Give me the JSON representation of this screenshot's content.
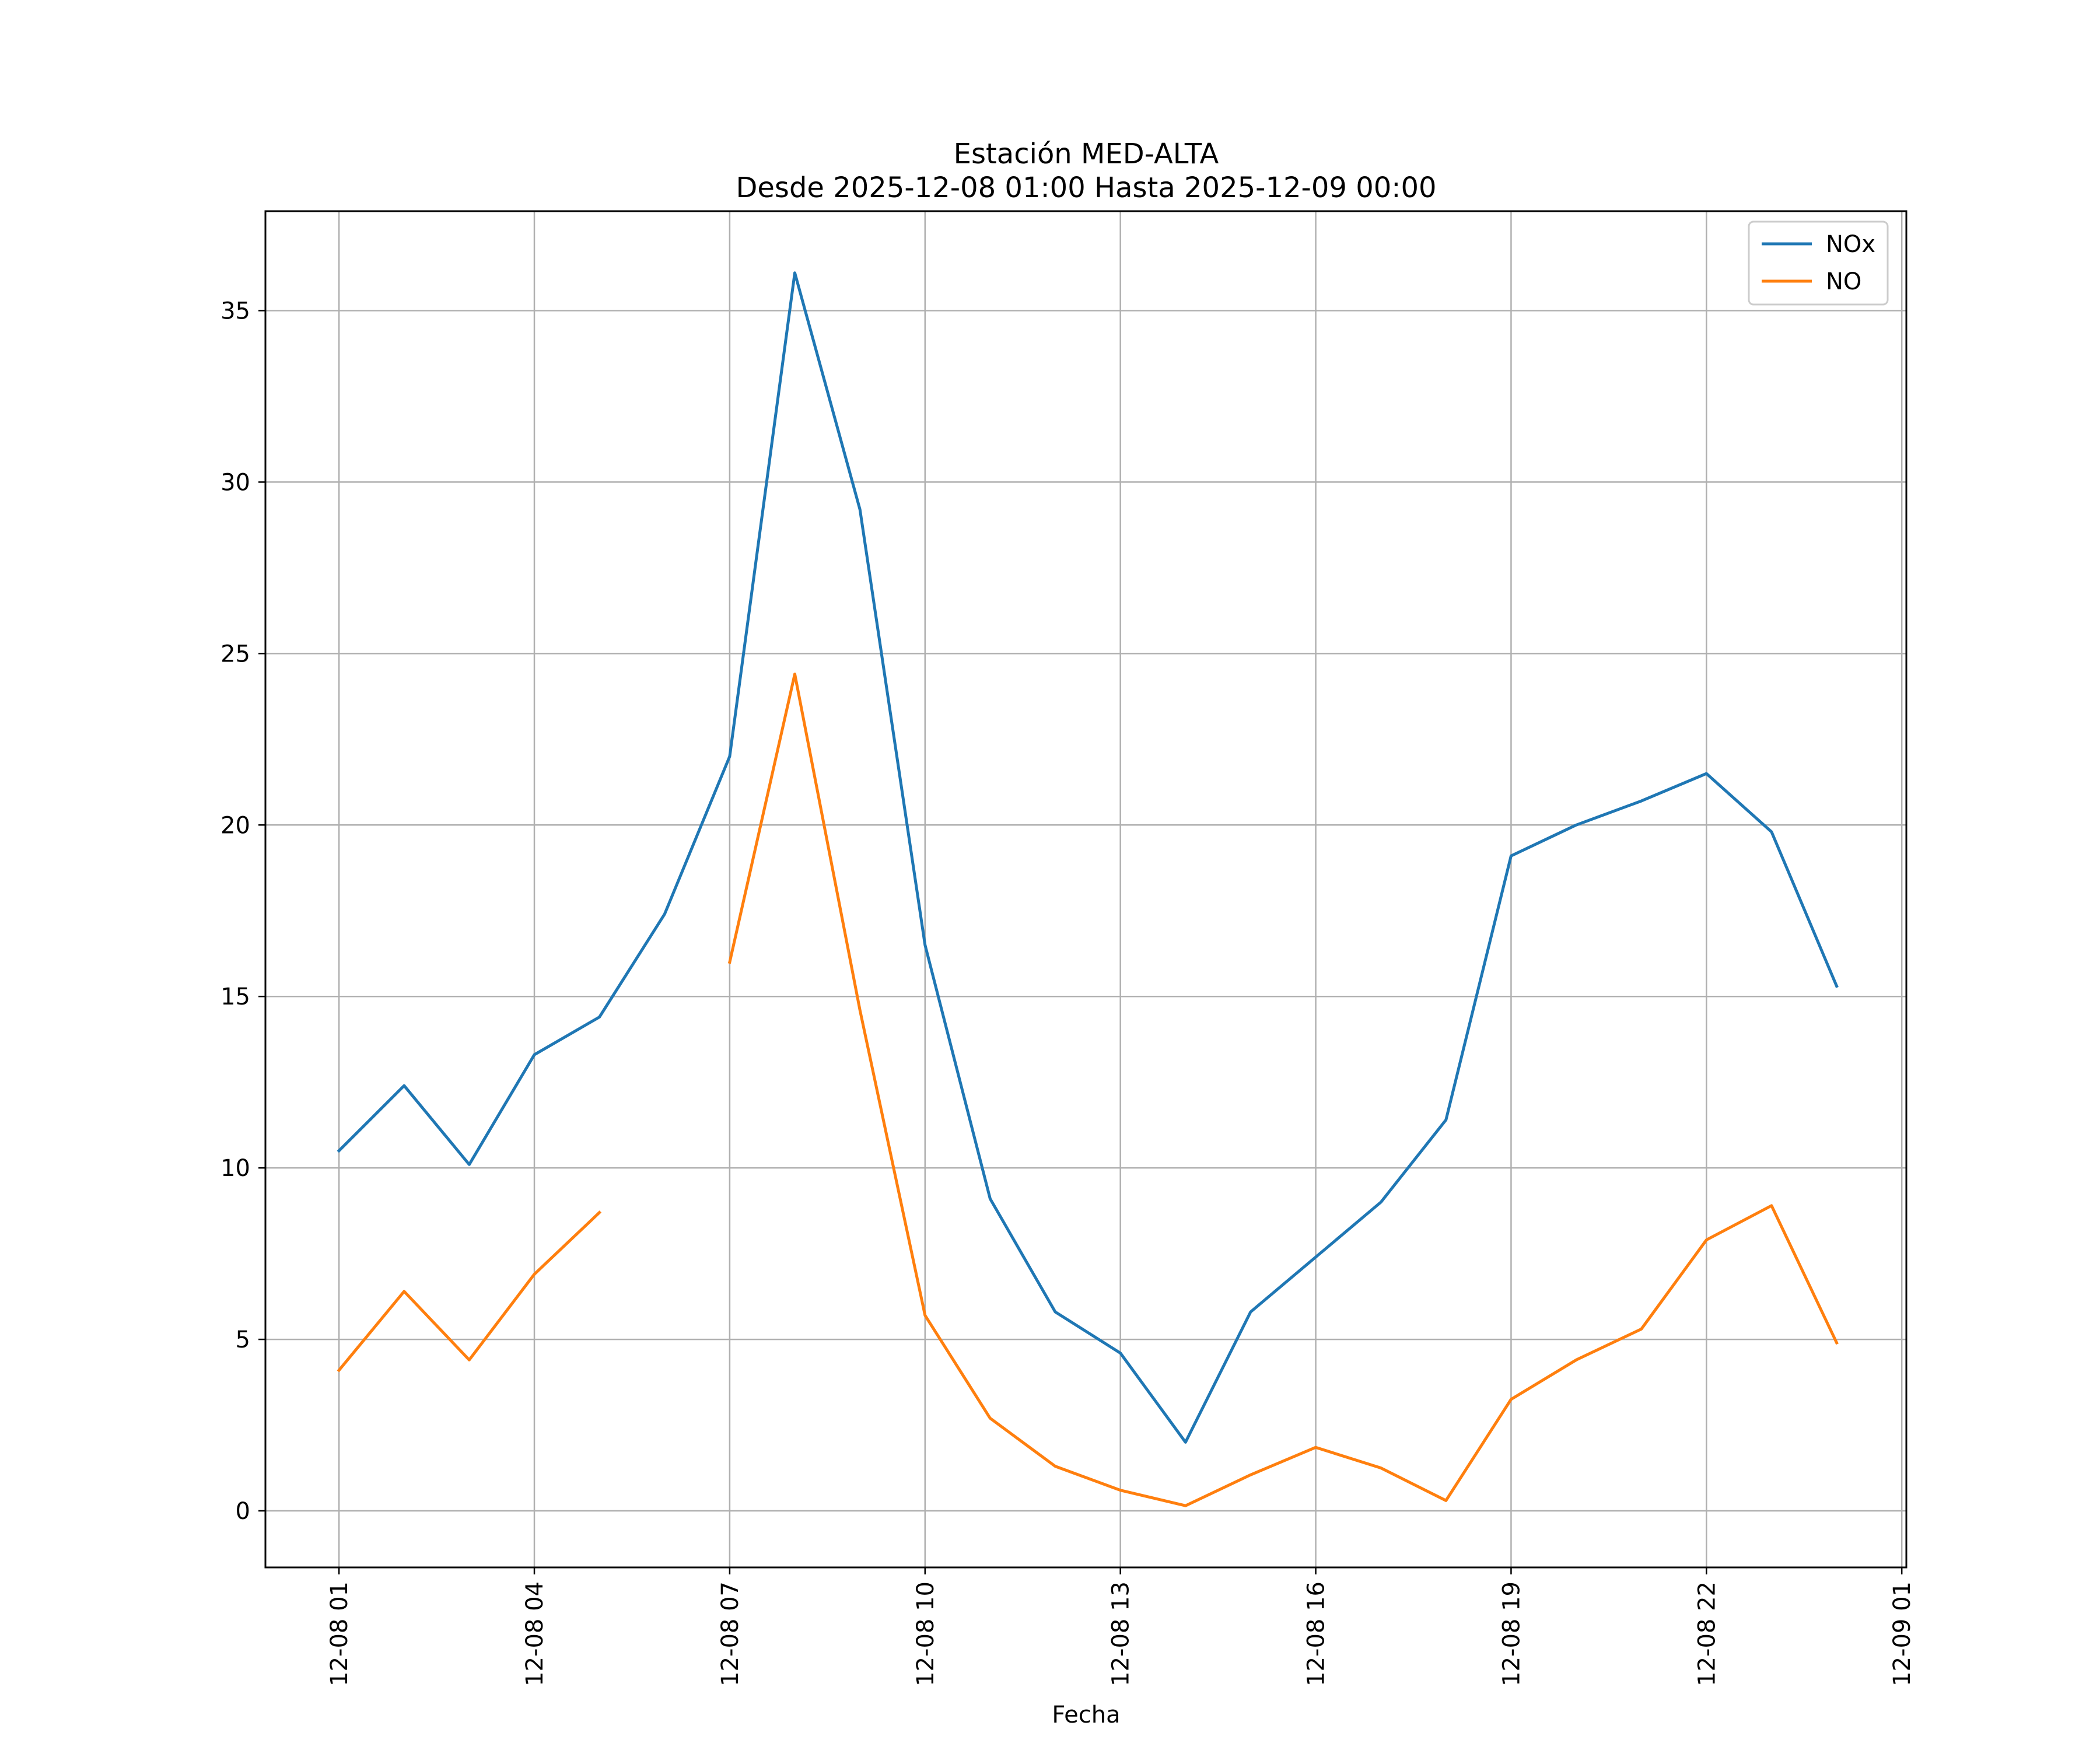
{
  "chart_data": {
    "type": "line",
    "title": "Estación MED-ALTA",
    "subtitle": "Desde 2025-12-08 01:00 Hasta 2025-12-09 00:00",
    "xlabel": "Fecha",
    "ylabel": "",
    "x_hours": [
      1,
      2,
      3,
      4,
      5,
      6,
      7,
      8,
      9,
      10,
      11,
      12,
      13,
      14,
      15,
      16,
      17,
      18,
      19,
      20,
      21,
      22,
      23,
      24
    ],
    "xticks": [
      {
        "hour": 1,
        "label": "12-08 01"
      },
      {
        "hour": 4,
        "label": "12-08 04"
      },
      {
        "hour": 7,
        "label": "12-08 07"
      },
      {
        "hour": 10,
        "label": "12-08 10"
      },
      {
        "hour": 13,
        "label": "12-08 13"
      },
      {
        "hour": 16,
        "label": "12-08 16"
      },
      {
        "hour": 19,
        "label": "12-08 19"
      },
      {
        "hour": 22,
        "label": "12-08 22"
      },
      {
        "hour": 25,
        "label": "12-09 01"
      }
    ],
    "yticks": [
      0,
      5,
      10,
      15,
      20,
      25,
      30,
      35
    ],
    "xlim": [
      -0.13,
      25.07
    ],
    "ylim": [
      -1.65,
      37.9
    ],
    "grid": true,
    "legend_position": "top-right",
    "series": [
      {
        "name": "NOx",
        "color": "#1f77b4",
        "values": [
          10.5,
          12.4,
          10.1,
          13.3,
          14.4,
          17.4,
          22.0,
          36.1,
          29.2,
          16.5,
          9.1,
          5.8,
          4.6,
          2.0,
          5.8,
          7.4,
          9.0,
          11.4,
          19.1,
          20.0,
          20.7,
          21.5,
          19.8,
          15.3
        ]
      },
      {
        "name": "NO",
        "color": "#ff7f0e",
        "values": [
          4.1,
          6.4,
          4.4,
          6.9,
          8.7,
          null,
          16.0,
          24.4,
          14.6,
          5.7,
          2.7,
          1.3,
          0.6,
          0.15,
          1.05,
          1.85,
          1.25,
          0.3,
          3.25,
          4.4,
          5.3,
          7.9,
          8.9,
          4.9
        ]
      }
    ]
  }
}
